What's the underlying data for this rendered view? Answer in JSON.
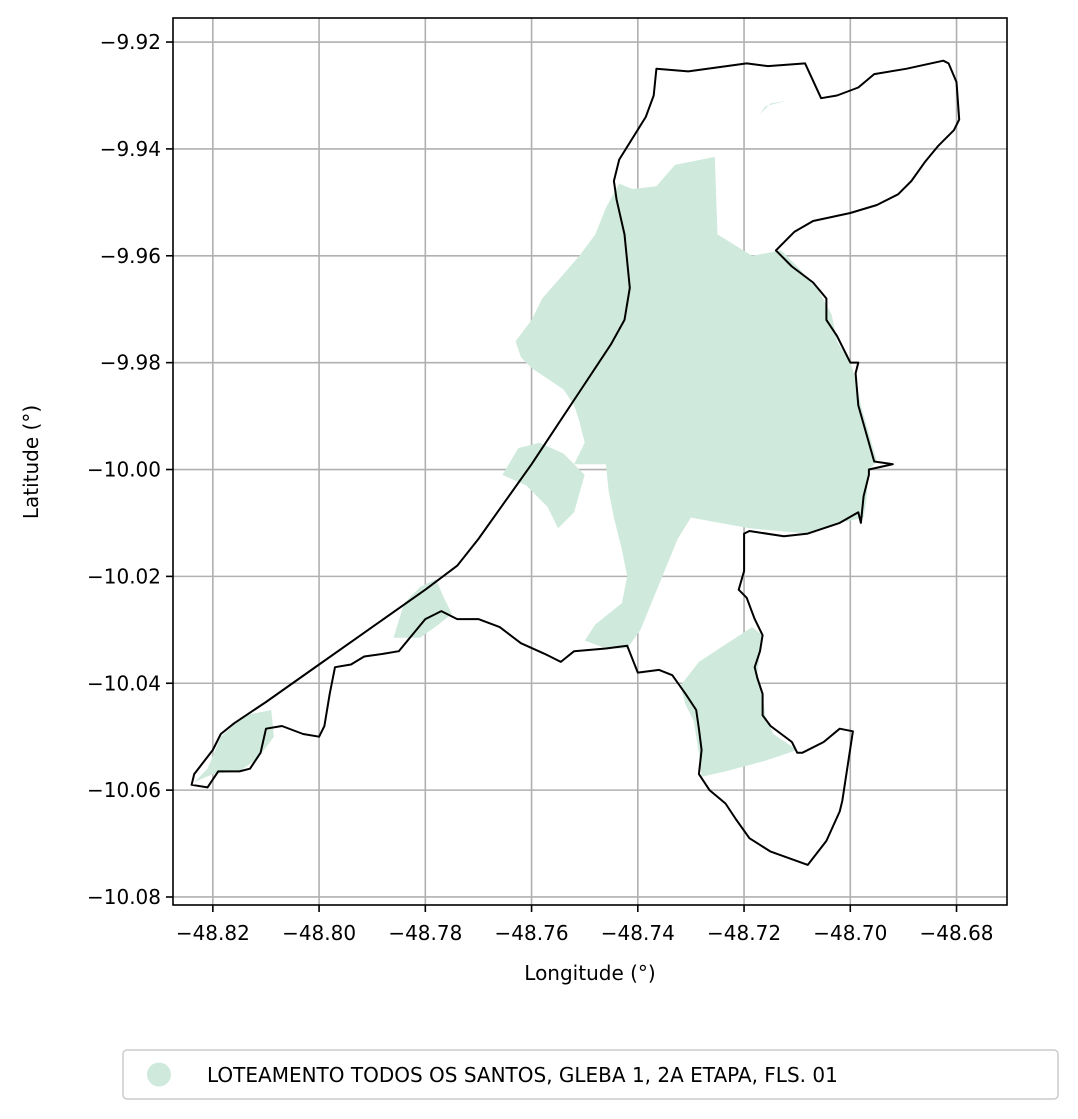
{
  "chart_data": {
    "type": "map",
    "xlabel": "Longitude (°)",
    "ylabel": "Latitude (°)",
    "xlim": [
      -48.8275,
      -48.6705
    ],
    "ylim": [
      -10.0815,
      -9.9155
    ],
    "grid": true,
    "x_ticks": [
      -48.82,
      -48.8,
      -48.78,
      -48.76,
      -48.74,
      -48.72,
      -48.7,
      -48.68
    ],
    "x_tick_labels": [
      "−48.82",
      "−48.80",
      "−48.78",
      "−48.76",
      "−48.74",
      "−48.72",
      "−48.70",
      "−48.68"
    ],
    "y_ticks": [
      -9.92,
      -9.94,
      -9.96,
      -9.98,
      -10.0,
      -10.02,
      -10.04,
      -10.06,
      -10.08
    ],
    "y_tick_labels": [
      "−9.92",
      "−9.94",
      "−9.96",
      "−9.98",
      "−10.00",
      "−10.02",
      "−10.04",
      "−10.06",
      "−10.08"
    ],
    "legend": {
      "placement": "bottom-center",
      "entries": [
        {
          "label": "LOTEAMENTO TODOS OS SANTOS, GLEBA 1, 2A ETAPA, FLS. 01",
          "color": "#cfeadd",
          "marker": "circle"
        }
      ]
    },
    "layers": {
      "boundary": {
        "stroke": "#000000",
        "coords": [
          [
            -48.7445,
            -9.946
          ],
          [
            -48.7435,
            -9.942
          ],
          [
            -48.7385,
            -9.934
          ],
          [
            -48.737,
            -9.93
          ],
          [
            -48.7365,
            -9.925
          ],
          [
            -48.7305,
            -9.9255
          ],
          [
            -48.7195,
            -9.924
          ],
          [
            -48.7155,
            -9.9245
          ],
          [
            -48.7085,
            -9.924
          ],
          [
            -48.7055,
            -9.9305
          ],
          [
            -48.7025,
            -9.93
          ],
          [
            -48.6985,
            -9.9285
          ],
          [
            -48.6955,
            -9.926
          ],
          [
            -48.6895,
            -9.925
          ],
          [
            -48.6825,
            -9.9235
          ],
          [
            -48.6815,
            -9.924
          ],
          [
            -48.68,
            -9.9275
          ],
          [
            -48.6795,
            -9.9345
          ],
          [
            -48.6805,
            -9.9365
          ],
          [
            -48.6835,
            -9.9395
          ],
          [
            -48.686,
            -9.9425
          ],
          [
            -48.6885,
            -9.946
          ],
          [
            -48.691,
            -9.9485
          ],
          [
            -48.695,
            -9.9505
          ],
          [
            -48.7,
            -9.952
          ],
          [
            -48.707,
            -9.9535
          ],
          [
            -48.7105,
            -9.9555
          ],
          [
            -48.714,
            -9.959
          ],
          [
            -48.711,
            -9.962
          ],
          [
            -48.707,
            -9.965
          ],
          [
            -48.7045,
            -9.968
          ],
          [
            -48.7045,
            -9.972
          ],
          [
            -48.7025,
            -9.975
          ],
          [
            -48.7,
            -9.98
          ],
          [
            -48.6985,
            -9.98
          ],
          [
            -48.699,
            -9.982
          ],
          [
            -48.6985,
            -9.988
          ],
          [
            -48.6955,
            -9.9985
          ],
          [
            -48.692,
            -9.999
          ],
          [
            -48.6965,
            -10.0
          ],
          [
            -48.6965,
            -10.001
          ],
          [
            -48.6975,
            -10.005
          ],
          [
            -48.698,
            -10.01
          ],
          [
            -48.6985,
            -10.008
          ],
          [
            -48.702,
            -10.01
          ],
          [
            -48.708,
            -10.012
          ],
          [
            -48.7125,
            -10.0125
          ],
          [
            -48.719,
            -10.0115
          ],
          [
            -48.72,
            -10.012
          ],
          [
            -48.72,
            -10.019
          ],
          [
            -48.721,
            -10.0225
          ],
          [
            -48.7195,
            -10.024
          ],
          [
            -48.718,
            -10.028
          ],
          [
            -48.7165,
            -10.031
          ],
          [
            -48.717,
            -10.034
          ],
          [
            -48.718,
            -10.037
          ],
          [
            -48.7175,
            -10.039
          ],
          [
            -48.7165,
            -10.042
          ],
          [
            -48.7165,
            -10.046
          ],
          [
            -48.715,
            -10.048
          ],
          [
            -48.711,
            -10.051
          ],
          [
            -48.71,
            -10.053
          ],
          [
            -48.709,
            -10.053
          ],
          [
            -48.705,
            -10.051
          ],
          [
            -48.702,
            -10.0485
          ],
          [
            -48.6995,
            -10.049
          ],
          [
            -48.7015,
            -10.062
          ],
          [
            -48.702,
            -10.064
          ],
          [
            -48.7045,
            -10.0695
          ],
          [
            -48.708,
            -10.074
          ],
          [
            -48.715,
            -10.0715
          ],
          [
            -48.719,
            -10.069
          ],
          [
            -48.7215,
            -10.0655
          ],
          [
            -48.7235,
            -10.0625
          ],
          [
            -48.7265,
            -10.06
          ],
          [
            -48.7285,
            -10.057
          ],
          [
            -48.728,
            -10.0525
          ],
          [
            -48.7285,
            -10.0485
          ],
          [
            -48.729,
            -10.045
          ],
          [
            -48.731,
            -10.042
          ],
          [
            -48.7335,
            -10.0385
          ],
          [
            -48.736,
            -10.0375
          ],
          [
            -48.74,
            -10.038
          ],
          [
            -48.742,
            -10.033
          ],
          [
            -48.746,
            -10.0335
          ],
          [
            -48.752,
            -10.034
          ],
          [
            -48.7545,
            -10.036
          ],
          [
            -48.7575,
            -10.0345
          ],
          [
            -48.762,
            -10.0325
          ],
          [
            -48.766,
            -10.0295
          ],
          [
            -48.77,
            -10.028
          ],
          [
            -48.774,
            -10.028
          ],
          [
            -48.777,
            -10.0265
          ],
          [
            -48.78,
            -10.028
          ],
          [
            -48.7825,
            -10.031
          ],
          [
            -48.785,
            -10.034
          ],
          [
            -48.788,
            -10.0345
          ],
          [
            -48.7915,
            -10.035
          ],
          [
            -48.794,
            -10.0365
          ],
          [
            -48.797,
            -10.037
          ],
          [
            -48.798,
            -10.042
          ],
          [
            -48.799,
            -10.048
          ],
          [
            -48.8,
            -10.05
          ],
          [
            -48.803,
            -10.0495
          ],
          [
            -48.807,
            -10.048
          ],
          [
            -48.81,
            -10.0485
          ],
          [
            -48.811,
            -10.053
          ],
          [
            -48.813,
            -10.056
          ],
          [
            -48.815,
            -10.0565
          ],
          [
            -48.817,
            -10.0565
          ],
          [
            -48.819,
            -10.0565
          ],
          [
            -48.821,
            -10.0595
          ],
          [
            -48.824,
            -10.059
          ],
          [
            -48.8235,
            -10.057
          ],
          [
            -48.82,
            -10.0525
          ],
          [
            -48.8185,
            -10.0495
          ],
          [
            -48.816,
            -10.0475
          ],
          [
            -48.81,
            -10.0435
          ],
          [
            -48.8,
            -10.0365
          ],
          [
            -48.79,
            -10.0295
          ],
          [
            -48.78,
            -10.0225
          ],
          [
            -48.774,
            -10.018
          ],
          [
            -48.77,
            -10.013
          ],
          [
            -48.765,
            -10.006
          ],
          [
            -48.76,
            -9.999
          ],
          [
            -48.755,
            -9.9915
          ],
          [
            -48.75,
            -9.984
          ],
          [
            -48.745,
            -9.9765
          ],
          [
            -48.7425,
            -9.972
          ],
          [
            -48.7415,
            -9.966
          ],
          [
            -48.7425,
            -9.956
          ],
          [
            -48.744,
            -9.9495
          ],
          [
            -48.7445,
            -9.946
          ]
        ]
      },
      "parcels": {
        "fill": "#cfeadd",
        "polygons": [
          [
            [
              -48.7435,
              -9.9465
            ],
            [
              -48.741,
              -9.9475
            ],
            [
              -48.7365,
              -9.947
            ],
            [
              -48.733,
              -9.943
            ],
            [
              -48.7255,
              -9.9415
            ],
            [
              -48.725,
              -9.956
            ],
            [
              -48.7185,
              -9.96
            ],
            [
              -48.713,
              -9.959
            ],
            [
              -48.7095,
              -9.9625
            ],
            [
              -48.706,
              -9.9665
            ],
            [
              -48.7035,
              -9.971
            ],
            [
              -48.7025,
              -9.976
            ],
            [
              -48.7,
              -9.98
            ],
            [
              -48.699,
              -9.983
            ],
            [
              -48.698,
              -9.988
            ],
            [
              -48.695,
              -9.9985
            ],
            [
              -48.6965,
              -10.0
            ],
            [
              -48.697,
              -10.006
            ],
            [
              -48.6975,
              -10.009
            ],
            [
              -48.702,
              -10.01
            ],
            [
              -48.708,
              -10.012
            ],
            [
              -48.719,
              -10.011
            ],
            [
              -48.73,
              -10.009
            ],
            [
              -48.7325,
              -10.013
            ],
            [
              -48.736,
              -10.0215
            ],
            [
              -48.7395,
              -10.03
            ],
            [
              -48.742,
              -10.0335
            ],
            [
              -48.746,
              -10.0335
            ],
            [
              -48.75,
              -10.032
            ],
            [
              -48.748,
              -10.029
            ],
            [
              -48.743,
              -10.025
            ],
            [
              -48.742,
              -10.02
            ],
            [
              -48.743,
              -10.015
            ],
            [
              -48.7445,
              -10.009
            ],
            [
              -48.7455,
              -10.004
            ],
            [
              -48.746,
              -9.999
            ],
            [
              -48.752,
              -9.999
            ],
            [
              -48.75,
              -9.995
            ],
            [
              -48.751,
              -9.991
            ],
            [
              -48.752,
              -9.988
            ],
            [
              -48.754,
              -9.985
            ],
            [
              -48.757,
              -9.983
            ],
            [
              -48.76,
              -9.981
            ],
            [
              -48.762,
              -9.979
            ],
            [
              -48.763,
              -9.976
            ],
            [
              -48.76,
              -9.972
            ],
            [
              -48.758,
              -9.968
            ],
            [
              -48.7545,
              -9.964
            ],
            [
              -48.751,
              -9.96
            ],
            [
              -48.748,
              -9.956
            ],
            [
              -48.746,
              -9.951
            ],
            [
              -48.7435,
              -9.9465
            ]
          ],
          [
            [
              -48.736,
              -9.962
            ],
            [
              -48.728,
              -9.969
            ],
            [
              -48.72,
              -9.977
            ],
            [
              -48.713,
              -9.982
            ],
            [
              -48.7095,
              -9.981
            ],
            [
              -48.706,
              -9.979
            ],
            [
              -48.711,
              -9.973
            ],
            [
              -48.7155,
              -9.968
            ],
            [
              -48.7185,
              -9.964
            ],
            [
              -48.721,
              -9.96
            ],
            [
              -48.729,
              -9.958
            ],
            [
              -48.736,
              -9.962
            ]
          ],
          [
            [
              -48.7655,
              -10.001
            ],
            [
              -48.761,
              -10.003
            ],
            [
              -48.757,
              -10.007
            ],
            [
              -48.755,
              -10.011
            ],
            [
              -48.752,
              -10.008
            ],
            [
              -48.75,
              -10.001
            ],
            [
              -48.754,
              -9.997
            ],
            [
              -48.7585,
              -9.995
            ],
            [
              -48.7625,
              -9.996
            ],
            [
              -48.7655,
              -10.001
            ]
          ],
          [
            [
              -48.786,
              -10.0315
            ],
            [
              -48.784,
              -10.025
            ],
            [
              -48.781,
              -10.022
            ],
            [
              -48.778,
              -10.0205
            ],
            [
              -48.7765,
              -10.024
            ],
            [
              -48.775,
              -10.027
            ],
            [
              -48.7775,
              -10.029
            ],
            [
              -48.781,
              -10.0315
            ],
            [
              -48.786,
              -10.0315
            ]
          ],
          [
            [
              -48.8235,
              -10.0585
            ],
            [
              -48.821,
              -10.056
            ],
            [
              -48.8185,
              -10.05
            ],
            [
              -48.814,
              -10.046
            ],
            [
              -48.809,
              -10.045
            ],
            [
              -48.8085,
              -10.05
            ],
            [
              -48.8115,
              -10.054
            ],
            [
              -48.815,
              -10.0565
            ],
            [
              -48.82,
              -10.057
            ],
            [
              -48.8235,
              -10.0585
            ]
          ],
          [
            [
              -48.7185,
              -10.0295
            ],
            [
              -48.7285,
              -10.036
            ],
            [
              -48.732,
              -10.0405
            ],
            [
              -48.731,
              -10.044
            ],
            [
              -48.7295,
              -10.047
            ],
            [
              -48.7285,
              -10.053
            ],
            [
              -48.728,
              -10.0575
            ],
            [
              -48.7235,
              -10.0565
            ],
            [
              -48.716,
              -10.0545
            ],
            [
              -48.71,
              -10.0525
            ],
            [
              -48.7145,
              -10.0495
            ],
            [
              -48.716,
              -10.046
            ],
            [
              -48.7165,
              -10.042
            ],
            [
              -48.7175,
              -10.038
            ],
            [
              -48.717,
              -10.034
            ],
            [
              -48.7165,
              -10.031
            ],
            [
              -48.7185,
              -10.0295
            ]
          ],
          [
            [
              -48.717,
              -9.9335
            ],
            [
              -48.715,
              -9.9315
            ],
            [
              -48.712,
              -9.931
            ],
            [
              -48.716,
              -9.932
            ],
            [
              -48.717,
              -9.9335
            ]
          ]
        ]
      }
    }
  }
}
